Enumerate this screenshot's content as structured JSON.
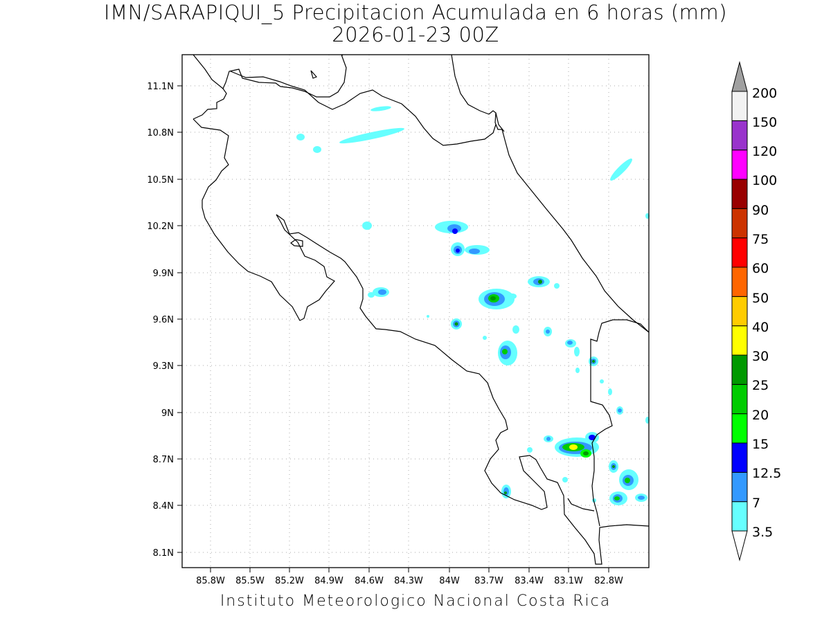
{
  "title": {
    "line1": "IMN/SARAPIQUI_5 Precipitacion Acumulada en 6 horas (mm)",
    "line2": "2026-01-23 00Z"
  },
  "footer": "Instituto Meteorologico Nacional Costa Rica",
  "map": {
    "lon_ticks": [
      "85.8W",
      "85.5W",
      "85.2W",
      "84.9W",
      "84.6W",
      "84.3W",
      "84W",
      "83.7W",
      "83.4W",
      "83.1W",
      "82.8W"
    ],
    "lat_ticks": [
      "11.1N",
      "10.8N",
      "10.5N",
      "10.2N",
      "9.9N",
      "9.6N",
      "9.3N",
      "9N",
      "8.7N",
      "8.4N",
      "8.1N"
    ],
    "grid": "dotted",
    "coastline_color": "#000000"
  },
  "colorbar": {
    "labels": [
      "3.5",
      "7",
      "12.5",
      "15",
      "20",
      "25",
      "30",
      "40",
      "50",
      "60",
      "75",
      "90",
      "100",
      "120",
      "150",
      "200"
    ],
    "colors": [
      "#66ffff",
      "#3399ff",
      "#0000ff",
      "#00ff00",
      "#00cc00",
      "#009900",
      "#ffff00",
      "#ffcc00",
      "#ff6600",
      "#ff0000",
      "#cc3300",
      "#990000",
      "#ff00ff",
      "#9933cc",
      "#f2f2f2",
      "#a0a0a0"
    ]
  }
}
